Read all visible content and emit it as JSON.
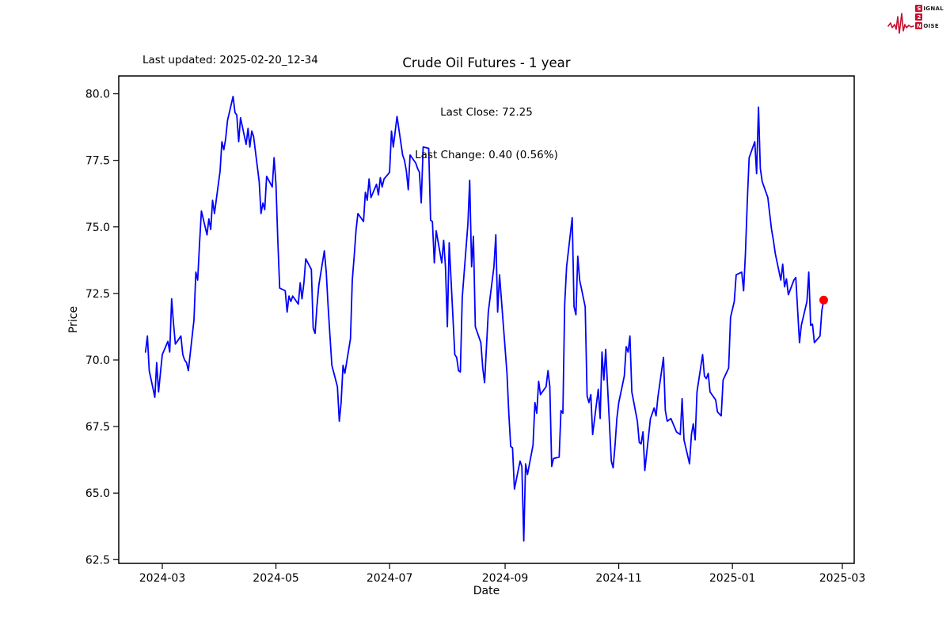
{
  "header": {
    "last_updated": "Last updated: 2025-02-20_12-34",
    "logo": {
      "color": "#c8102e",
      "row1_box": "S",
      "row1_rest": "IGNAL",
      "row2_box": "2",
      "row2_rest": "",
      "row3_box": "N",
      "row3_rest": "OISE"
    }
  },
  "chart_data": {
    "type": "line",
    "title": "Crude Oil Futures - 1 year",
    "annotation": {
      "last_close_label": "Last Close: 72.25",
      "last_change_label": "Last Change: 0.40 (0.56%)",
      "last_close": 72.25,
      "last_change": 0.4,
      "last_change_pct": 0.56
    },
    "xlabel": "Date",
    "ylabel": "Price",
    "line_color": "#0000ff",
    "axis_color": "#000000",
    "background": "#ffffff",
    "grid": false,
    "legend": "none",
    "ylim": [
      62.36,
      80.67
    ],
    "x_domain": [
      "2024-02-06",
      "2025-03-07"
    ],
    "yticks": [
      62.5,
      65.0,
      67.5,
      70.0,
      72.5,
      75.0,
      77.5,
      80.0
    ],
    "ytick_labels": [
      "62.5",
      "65.0",
      "67.5",
      "70.0",
      "72.5",
      "75.0",
      "77.5",
      "80.0"
    ],
    "xtick_dates": [
      "2024-03-01",
      "2024-05-01",
      "2024-07-01",
      "2024-09-01",
      "2024-11-01",
      "2025-01-01",
      "2025-03-01"
    ],
    "xtick_labels": [
      "2024-03",
      "2024-05",
      "2024-07",
      "2024-09",
      "2024-11",
      "2025-01",
      "2025-03"
    ],
    "last_point": {
      "date": "2025-02-19",
      "price": 72.25,
      "color": "#ff0000"
    },
    "series": [
      {
        "name": "Price",
        "points": [
          [
            "2024-02-21",
            70.3
          ],
          [
            "2024-02-22",
            70.9
          ],
          [
            "2024-02-23",
            69.6
          ],
          [
            "2024-02-26",
            68.6
          ],
          [
            "2024-02-27",
            69.9
          ],
          [
            "2024-02-28",
            68.8
          ],
          [
            "2024-02-29",
            69.5
          ],
          [
            "2024-03-01",
            70.2
          ],
          [
            "2024-03-04",
            70.7
          ],
          [
            "2024-03-05",
            70.3
          ],
          [
            "2024-03-06",
            72.3
          ],
          [
            "2024-03-07",
            71.4
          ],
          [
            "2024-03-08",
            70.6
          ],
          [
            "2024-03-11",
            70.9
          ],
          [
            "2024-03-12",
            70.2
          ],
          [
            "2024-03-13",
            70.0
          ],
          [
            "2024-03-14",
            69.9
          ],
          [
            "2024-03-15",
            69.6
          ],
          [
            "2024-03-18",
            71.5
          ],
          [
            "2024-03-19",
            73.3
          ],
          [
            "2024-03-20",
            73.0
          ],
          [
            "2024-03-21",
            74.4
          ],
          [
            "2024-03-22",
            75.6
          ],
          [
            "2024-03-25",
            74.7
          ],
          [
            "2024-03-26",
            75.3
          ],
          [
            "2024-03-27",
            74.9
          ],
          [
            "2024-03-28",
            76.0
          ],
          [
            "2024-03-29",
            75.5
          ],
          [
            "2024-04-01",
            77.1
          ],
          [
            "2024-04-02",
            78.2
          ],
          [
            "2024-04-03",
            77.9
          ],
          [
            "2024-04-04",
            78.3
          ],
          [
            "2024-04-05",
            79.0
          ],
          [
            "2024-04-08",
            79.9
          ],
          [
            "2024-04-09",
            79.3
          ],
          [
            "2024-04-10",
            79.2
          ],
          [
            "2024-04-11",
            78.2
          ],
          [
            "2024-04-12",
            79.1
          ],
          [
            "2024-04-15",
            78.1
          ],
          [
            "2024-04-16",
            78.7
          ],
          [
            "2024-04-17",
            78.0
          ],
          [
            "2024-04-18",
            78.6
          ],
          [
            "2024-04-19",
            78.4
          ],
          [
            "2024-04-22",
            76.7
          ],
          [
            "2024-04-23",
            75.5
          ],
          [
            "2024-04-24",
            75.9
          ],
          [
            "2024-04-25",
            75.65
          ],
          [
            "2024-04-26",
            76.9
          ],
          [
            "2024-04-29",
            76.5
          ],
          [
            "2024-04-30",
            77.6
          ],
          [
            "2024-05-01",
            76.6
          ],
          [
            "2024-05-02",
            74.5
          ],
          [
            "2024-05-03",
            72.7
          ],
          [
            "2024-05-06",
            72.6
          ],
          [
            "2024-05-07",
            71.8
          ],
          [
            "2024-05-08",
            72.4
          ],
          [
            "2024-05-09",
            72.2
          ],
          [
            "2024-05-10",
            72.4
          ],
          [
            "2024-05-13",
            72.1
          ],
          [
            "2024-05-14",
            72.9
          ],
          [
            "2024-05-15",
            72.3
          ],
          [
            "2024-05-16",
            72.9
          ],
          [
            "2024-05-17",
            73.8
          ],
          [
            "2024-05-20",
            73.4
          ],
          [
            "2024-05-21",
            71.2
          ],
          [
            "2024-05-22",
            71.0
          ],
          [
            "2024-05-23",
            72.0
          ],
          [
            "2024-05-24",
            72.8
          ],
          [
            "2024-05-27",
            74.1
          ],
          [
            "2024-05-28",
            73.3
          ],
          [
            "2024-05-29",
            72.0
          ],
          [
            "2024-05-30",
            70.9
          ],
          [
            "2024-05-31",
            69.8
          ],
          [
            "2024-06-03",
            69.0
          ],
          [
            "2024-06-04",
            67.7
          ],
          [
            "2024-06-05",
            68.4
          ],
          [
            "2024-06-06",
            69.8
          ],
          [
            "2024-06-07",
            69.5
          ],
          [
            "2024-06-10",
            70.8
          ],
          [
            "2024-06-11",
            73.0
          ],
          [
            "2024-06-12",
            73.9
          ],
          [
            "2024-06-13",
            74.9
          ],
          [
            "2024-06-14",
            75.5
          ],
          [
            "2024-06-17",
            75.2
          ],
          [
            "2024-06-18",
            76.3
          ],
          [
            "2024-06-19",
            76.0
          ],
          [
            "2024-06-20",
            76.8
          ],
          [
            "2024-06-21",
            76.1
          ],
          [
            "2024-06-24",
            76.6
          ],
          [
            "2024-06-25",
            76.2
          ],
          [
            "2024-06-26",
            76.85
          ],
          [
            "2024-06-27",
            76.5
          ],
          [
            "2024-06-28",
            76.8
          ],
          [
            "2024-07-01",
            77.05
          ],
          [
            "2024-07-02",
            78.6
          ],
          [
            "2024-07-03",
            78.0
          ],
          [
            "2024-07-05",
            79.15
          ],
          [
            "2024-07-08",
            77.7
          ],
          [
            "2024-07-09",
            77.5
          ],
          [
            "2024-07-10",
            77.1
          ],
          [
            "2024-07-11",
            76.4
          ],
          [
            "2024-07-12",
            77.7
          ],
          [
            "2024-07-15",
            77.4
          ],
          [
            "2024-07-16",
            77.2
          ],
          [
            "2024-07-17",
            77.05
          ],
          [
            "2024-07-18",
            75.9
          ],
          [
            "2024-07-19",
            78.0
          ],
          [
            "2024-07-22",
            77.95
          ],
          [
            "2024-07-23",
            75.25
          ],
          [
            "2024-07-24",
            75.2
          ],
          [
            "2024-07-25",
            73.65
          ],
          [
            "2024-07-26",
            74.85
          ],
          [
            "2024-07-29",
            73.65
          ],
          [
            "2024-07-30",
            74.5
          ],
          [
            "2024-07-31",
            73.5
          ],
          [
            "2024-08-01",
            71.25
          ],
          [
            "2024-08-02",
            74.4
          ],
          [
            "2024-08-05",
            70.2
          ],
          [
            "2024-08-06",
            70.1
          ],
          [
            "2024-08-07",
            69.6
          ],
          [
            "2024-08-08",
            69.55
          ],
          [
            "2024-08-09",
            72.35
          ],
          [
            "2024-08-12",
            75.1
          ],
          [
            "2024-08-13",
            76.75
          ],
          [
            "2024-08-14",
            73.5
          ],
          [
            "2024-08-15",
            74.65
          ],
          [
            "2024-08-16",
            71.25
          ],
          [
            "2024-08-19",
            70.65
          ],
          [
            "2024-08-20",
            69.7
          ],
          [
            "2024-08-21",
            69.15
          ],
          [
            "2024-08-22",
            70.5
          ],
          [
            "2024-08-23",
            71.8
          ],
          [
            "2024-08-26",
            73.5
          ],
          [
            "2024-08-27",
            74.7
          ],
          [
            "2024-08-28",
            71.8
          ],
          [
            "2024-08-29",
            73.2
          ],
          [
            "2024-09-02",
            69.5
          ],
          [
            "2024-09-03",
            68.0
          ],
          [
            "2024-09-04",
            66.75
          ],
          [
            "2024-09-05",
            66.7
          ],
          [
            "2024-09-06",
            65.15
          ],
          [
            "2024-09-09",
            66.2
          ],
          [
            "2024-09-10",
            66.0
          ],
          [
            "2024-09-11",
            63.2
          ],
          [
            "2024-09-12",
            66.1
          ],
          [
            "2024-09-13",
            65.7
          ],
          [
            "2024-09-16",
            66.8
          ],
          [
            "2024-09-17",
            68.4
          ],
          [
            "2024-09-18",
            68.0
          ],
          [
            "2024-09-19",
            69.2
          ],
          [
            "2024-09-20",
            68.7
          ],
          [
            "2024-09-23",
            69.0
          ],
          [
            "2024-09-24",
            69.6
          ],
          [
            "2024-09-25",
            69.0
          ],
          [
            "2024-09-26",
            66.0
          ],
          [
            "2024-09-27",
            66.3
          ],
          [
            "2024-09-30",
            66.35
          ],
          [
            "2024-10-01",
            68.1
          ],
          [
            "2024-10-02",
            68.0
          ],
          [
            "2024-10-03",
            72.1
          ],
          [
            "2024-10-04",
            73.5
          ],
          [
            "2024-10-07",
            75.35
          ],
          [
            "2024-10-08",
            72.0
          ],
          [
            "2024-10-09",
            71.7
          ],
          [
            "2024-10-10",
            73.9
          ],
          [
            "2024-10-11",
            73.0
          ],
          [
            "2024-10-14",
            72.0
          ],
          [
            "2024-10-15",
            68.65
          ],
          [
            "2024-10-16",
            68.4
          ],
          [
            "2024-10-17",
            68.7
          ],
          [
            "2024-10-18",
            67.2
          ],
          [
            "2024-10-21",
            68.9
          ],
          [
            "2024-10-22",
            67.8
          ],
          [
            "2024-10-23",
            70.3
          ],
          [
            "2024-10-24",
            69.25
          ],
          [
            "2024-10-25",
            70.4
          ],
          [
            "2024-10-28",
            66.2
          ],
          [
            "2024-10-29",
            65.95
          ],
          [
            "2024-10-30",
            66.8
          ],
          [
            "2024-10-31",
            67.8
          ],
          [
            "2024-11-01",
            68.4
          ],
          [
            "2024-11-04",
            69.4
          ],
          [
            "2024-11-05",
            70.5
          ],
          [
            "2024-11-06",
            70.3
          ],
          [
            "2024-11-07",
            70.9
          ],
          [
            "2024-11-08",
            68.8
          ],
          [
            "2024-11-11",
            67.7
          ],
          [
            "2024-11-12",
            66.9
          ],
          [
            "2024-11-13",
            66.85
          ],
          [
            "2024-11-14",
            67.3
          ],
          [
            "2024-11-15",
            65.85
          ],
          [
            "2024-11-18",
            67.8
          ],
          [
            "2024-11-19",
            68.0
          ],
          [
            "2024-11-20",
            68.2
          ],
          [
            "2024-11-21",
            67.9
          ],
          [
            "2024-11-22",
            68.6
          ],
          [
            "2024-11-25",
            70.1
          ],
          [
            "2024-11-26",
            68.1
          ],
          [
            "2024-11-27",
            67.7
          ],
          [
            "2024-11-29",
            67.8
          ],
          [
            "2024-12-02",
            67.3
          ],
          [
            "2024-12-03",
            67.25
          ],
          [
            "2024-12-04",
            67.2
          ],
          [
            "2024-12-05",
            68.55
          ],
          [
            "2024-12-06",
            67.0
          ],
          [
            "2024-12-09",
            66.1
          ],
          [
            "2024-12-10",
            67.2
          ],
          [
            "2024-12-11",
            67.6
          ],
          [
            "2024-12-12",
            67.0
          ],
          [
            "2024-12-13",
            68.8
          ],
          [
            "2024-12-16",
            70.2
          ],
          [
            "2024-12-17",
            69.4
          ],
          [
            "2024-12-18",
            69.3
          ],
          [
            "2024-12-19",
            69.5
          ],
          [
            "2024-12-20",
            68.8
          ],
          [
            "2024-12-23",
            68.5
          ],
          [
            "2024-12-24",
            68.05
          ],
          [
            "2024-12-26",
            67.9
          ],
          [
            "2024-12-27",
            69.25
          ],
          [
            "2024-12-30",
            69.7
          ],
          [
            "2024-12-31",
            71.6
          ],
          [
            "2025-01-02",
            72.2
          ],
          [
            "2025-01-03",
            73.2
          ],
          [
            "2025-01-06",
            73.3
          ],
          [
            "2025-01-07",
            72.6
          ],
          [
            "2025-01-08",
            74.0
          ],
          [
            "2025-01-09",
            76.0
          ],
          [
            "2025-01-10",
            77.6
          ],
          [
            "2025-01-13",
            78.2
          ],
          [
            "2025-01-14",
            77.0
          ],
          [
            "2025-01-15",
            79.5
          ],
          [
            "2025-01-16",
            77.2
          ],
          [
            "2025-01-17",
            76.7
          ],
          [
            "2025-01-20",
            76.1
          ],
          [
            "2025-01-21",
            75.5
          ],
          [
            "2025-01-22",
            74.9
          ],
          [
            "2025-01-23",
            74.5
          ],
          [
            "2025-01-24",
            74.0
          ],
          [
            "2025-01-27",
            73.0
          ],
          [
            "2025-01-28",
            73.6
          ],
          [
            "2025-01-29",
            72.75
          ],
          [
            "2025-01-30",
            73.05
          ],
          [
            "2025-01-31",
            72.45
          ],
          [
            "2025-02-03",
            73.0
          ],
          [
            "2025-02-04",
            73.1
          ],
          [
            "2025-02-05",
            71.9
          ],
          [
            "2025-02-06",
            70.65
          ],
          [
            "2025-02-07",
            71.3
          ],
          [
            "2025-02-10",
            72.2
          ],
          [
            "2025-02-11",
            73.3
          ],
          [
            "2025-02-12",
            71.3
          ],
          [
            "2025-02-13",
            71.35
          ],
          [
            "2025-02-14",
            70.65
          ],
          [
            "2025-02-17",
            70.9
          ],
          [
            "2025-02-18",
            71.85
          ],
          [
            "2025-02-19",
            72.25
          ]
        ]
      }
    ]
  }
}
